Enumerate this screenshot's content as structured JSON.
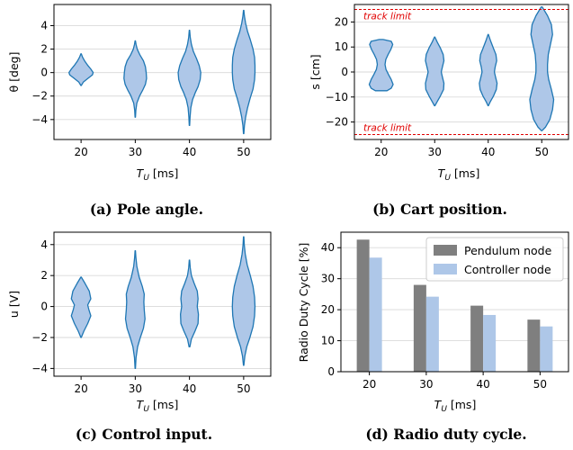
{
  "colors": {
    "violin_fill": "#aec7e8",
    "violin_edge": "#1f77b4",
    "pendulum_bar": "#7f7f7f",
    "controller_bar": "#aec7e8",
    "track_limit": "#e00000",
    "grid": "#d9d9d9"
  },
  "chart_data": [
    {
      "id": "a",
      "type": "violin",
      "caption": "(a) Pole angle.",
      "xlabel_main": "T",
      "xlabel_sub": "U",
      "xlabel_unit": " [ms]",
      "ylabel": "θ [deg]",
      "categories": [
        "20",
        "30",
        "40",
        "50"
      ],
      "ylim": [
        -5.7,
        5.8
      ],
      "yticks": [
        -4,
        -2,
        0,
        2,
        4
      ],
      "ytick_labels": [
        "−4",
        "−2",
        "0",
        "2",
        "4"
      ],
      "grid": true,
      "violins": [
        {
          "min": -1.1,
          "max": 1.6,
          "profile": [
            [
              -1.1,
              0.01
            ],
            [
              -0.8,
              0.12
            ],
            [
              -0.5,
              0.35
            ],
            [
              -0.2,
              0.58
            ],
            [
              0.0,
              0.62
            ],
            [
              0.3,
              0.5
            ],
            [
              0.6,
              0.35
            ],
            [
              1.0,
              0.18
            ],
            [
              1.3,
              0.08
            ],
            [
              1.6,
              0.01
            ]
          ]
        },
        {
          "min": -3.8,
          "max": 2.7,
          "profile": [
            [
              -3.8,
              0.01
            ],
            [
              -3.2,
              0.03
            ],
            [
              -2.6,
              0.08
            ],
            [
              -2.0,
              0.22
            ],
            [
              -1.5,
              0.38
            ],
            [
              -1.0,
              0.52
            ],
            [
              -0.5,
              0.58
            ],
            [
              0.0,
              0.56
            ],
            [
              0.5,
              0.52
            ],
            [
              1.0,
              0.42
            ],
            [
              1.5,
              0.24
            ],
            [
              2.0,
              0.1
            ],
            [
              2.4,
              0.04
            ],
            [
              2.7,
              0.01
            ]
          ]
        },
        {
          "min": -4.5,
          "max": 3.6,
          "profile": [
            [
              -4.5,
              0.01
            ],
            [
              -3.8,
              0.03
            ],
            [
              -3.0,
              0.07
            ],
            [
              -2.3,
              0.16
            ],
            [
              -1.7,
              0.3
            ],
            [
              -1.2,
              0.44
            ],
            [
              -0.6,
              0.55
            ],
            [
              0.0,
              0.58
            ],
            [
              0.6,
              0.5
            ],
            [
              1.2,
              0.36
            ],
            [
              1.8,
              0.2
            ],
            [
              2.4,
              0.1
            ],
            [
              3.0,
              0.04
            ],
            [
              3.6,
              0.01
            ]
          ]
        },
        {
          "min": -5.2,
          "max": 5.3,
          "profile": [
            [
              -5.2,
              0.01
            ],
            [
              -4.5,
              0.04
            ],
            [
              -3.8,
              0.1
            ],
            [
              -3.0,
              0.2
            ],
            [
              -2.2,
              0.33
            ],
            [
              -1.4,
              0.48
            ],
            [
              -0.6,
              0.56
            ],
            [
              0.0,
              0.58
            ],
            [
              0.6,
              0.58
            ],
            [
              1.3,
              0.56
            ],
            [
              2.0,
              0.48
            ],
            [
              2.8,
              0.34
            ],
            [
              3.5,
              0.2
            ],
            [
              4.2,
              0.1
            ],
            [
              4.8,
              0.04
            ],
            [
              5.3,
              0.01
            ]
          ]
        }
      ]
    },
    {
      "id": "b",
      "type": "violin",
      "caption": "(b) Cart position.",
      "xlabel_main": "T",
      "xlabel_sub": "U",
      "xlabel_unit": " [ms]",
      "ylabel": "s [cm]",
      "categories": [
        "20",
        "30",
        "40",
        "50"
      ],
      "ylim": [
        -27,
        27
      ],
      "yticks": [
        -20,
        -10,
        0,
        10,
        20
      ],
      "ytick_labels": [
        "−20",
        "−10",
        "0",
        "10",
        "20"
      ],
      "grid": true,
      "track_limits": [
        {
          "value": 25,
          "label": "track limit"
        },
        {
          "value": -25,
          "label": "track limit"
        }
      ],
      "violins": [
        {
          "min": -7.5,
          "max": 13.0,
          "profile": [
            [
              -7.5,
              0.3
            ],
            [
              -6.5,
              0.52
            ],
            [
              -5.0,
              0.62
            ],
            [
              -3.0,
              0.52
            ],
            [
              -1.0,
              0.38
            ],
            [
              1.0,
              0.25
            ],
            [
              3.0,
              0.2
            ],
            [
              5.0,
              0.24
            ],
            [
              7.0,
              0.36
            ],
            [
              9.0,
              0.5
            ],
            [
              11.0,
              0.6
            ],
            [
              12.3,
              0.52
            ],
            [
              13.0,
              0.1
            ]
          ]
        },
        {
          "min": -13.5,
          "max": 14.0,
          "profile": [
            [
              -13.5,
              0.01
            ],
            [
              -12.0,
              0.12
            ],
            [
              -9.5,
              0.3
            ],
            [
              -7.0,
              0.46
            ],
            [
              -4.5,
              0.48
            ],
            [
              -2.0,
              0.4
            ],
            [
              0.0,
              0.34
            ],
            [
              2.0,
              0.4
            ],
            [
              4.5,
              0.48
            ],
            [
              7.0,
              0.44
            ],
            [
              9.5,
              0.3
            ],
            [
              12.0,
              0.13
            ],
            [
              14.0,
              0.01
            ]
          ]
        },
        {
          "min": -13.5,
          "max": 15.0,
          "profile": [
            [
              -13.5,
              0.01
            ],
            [
              -12.0,
              0.1
            ],
            [
              -9.5,
              0.28
            ],
            [
              -7.0,
              0.42
            ],
            [
              -4.5,
              0.46
            ],
            [
              -2.0,
              0.38
            ],
            [
              0.0,
              0.32
            ],
            [
              2.0,
              0.36
            ],
            [
              4.5,
              0.44
            ],
            [
              7.0,
              0.4
            ],
            [
              9.5,
              0.27
            ],
            [
              12.5,
              0.12
            ],
            [
              15.0,
              0.01
            ]
          ]
        },
        {
          "min": -23.5,
          "max": 26.0,
          "profile": [
            [
              -23.5,
              0.01
            ],
            [
              -22.0,
              0.2
            ],
            [
              -19.0,
              0.42
            ],
            [
              -15.0,
              0.56
            ],
            [
              -11.0,
              0.62
            ],
            [
              -7.0,
              0.5
            ],
            [
              -3.0,
              0.36
            ],
            [
              0.0,
              0.3
            ],
            [
              3.0,
              0.3
            ],
            [
              7.0,
              0.34
            ],
            [
              11.0,
              0.45
            ],
            [
              15.0,
              0.56
            ],
            [
              19.0,
              0.5
            ],
            [
              22.5,
              0.3
            ],
            [
              26.0,
              0.03
            ]
          ]
        }
      ]
    },
    {
      "id": "c",
      "type": "violin",
      "caption": "(c) Control input.",
      "xlabel_main": "T",
      "xlabel_sub": "U",
      "xlabel_unit": " [ms]",
      "ylabel": "u [V]",
      "categories": [
        "20",
        "30",
        "40",
        "50"
      ],
      "ylim": [
        -4.5,
        4.8
      ],
      "yticks": [
        -4,
        -2,
        0,
        2,
        4
      ],
      "ytick_labels": [
        "−4",
        "−2",
        "0",
        "2",
        "4"
      ],
      "grid": true,
      "violins": [
        {
          "min": -2.0,
          "max": 1.9,
          "profile": [
            [
              -2.0,
              0.01
            ],
            [
              -1.6,
              0.14
            ],
            [
              -1.1,
              0.34
            ],
            [
              -0.6,
              0.5
            ],
            [
              -0.2,
              0.4
            ],
            [
              0.1,
              0.34
            ],
            [
              0.5,
              0.5
            ],
            [
              1.0,
              0.42
            ],
            [
              1.5,
              0.2
            ],
            [
              1.9,
              0.01
            ]
          ]
        },
        {
          "min": -4.0,
          "max": 3.6,
          "profile": [
            [
              -4.0,
              0.01
            ],
            [
              -3.3,
              0.04
            ],
            [
              -2.6,
              0.12
            ],
            [
              -2.0,
              0.26
            ],
            [
              -1.4,
              0.42
            ],
            [
              -0.8,
              0.5
            ],
            [
              -0.2,
              0.46
            ],
            [
              0.3,
              0.44
            ],
            [
              0.8,
              0.46
            ],
            [
              1.3,
              0.36
            ],
            [
              1.9,
              0.2
            ],
            [
              2.6,
              0.08
            ],
            [
              3.2,
              0.03
            ],
            [
              3.6,
              0.01
            ]
          ]
        },
        {
          "min": -2.6,
          "max": 3.0,
          "profile": [
            [
              -2.6,
              0.02
            ],
            [
              -2.1,
              0.1
            ],
            [
              -1.6,
              0.28
            ],
            [
              -1.1,
              0.44
            ],
            [
              -0.5,
              0.46
            ],
            [
              0.0,
              0.4
            ],
            [
              0.5,
              0.44
            ],
            [
              1.0,
              0.4
            ],
            [
              1.5,
              0.24
            ],
            [
              2.0,
              0.1
            ],
            [
              2.5,
              0.04
            ],
            [
              3.0,
              0.01
            ]
          ]
        },
        {
          "min": -3.8,
          "max": 4.5,
          "profile": [
            [
              -3.8,
              0.01
            ],
            [
              -3.2,
              0.06
            ],
            [
              -2.6,
              0.16
            ],
            [
              -2.0,
              0.32
            ],
            [
              -1.3,
              0.48
            ],
            [
              -0.6,
              0.56
            ],
            [
              0.0,
              0.58
            ],
            [
              0.6,
              0.56
            ],
            [
              1.3,
              0.48
            ],
            [
              2.0,
              0.34
            ],
            [
              2.7,
              0.18
            ],
            [
              3.4,
              0.08
            ],
            [
              4.0,
              0.03
            ],
            [
              4.5,
              0.01
            ]
          ]
        }
      ]
    },
    {
      "id": "d",
      "type": "bar",
      "caption": "(d) Radio duty cycle.",
      "xlabel_main": "T",
      "xlabel_sub": "U",
      "xlabel_unit": " [ms]",
      "ylabel": "Radio Duty Cycle [%]",
      "categories": [
        "20",
        "30",
        "40",
        "50"
      ],
      "ylim": [
        0,
        45
      ],
      "yticks": [
        0,
        10,
        20,
        30,
        40
      ],
      "ytick_labels": [
        "0",
        "10",
        "20",
        "30",
        "40"
      ],
      "grid": true,
      "legend_position": "top-right",
      "series": [
        {
          "name": "Pendulum node",
          "values": [
            42.6,
            28.0,
            21.3,
            16.8
          ]
        },
        {
          "name": "Controller node",
          "values": [
            36.8,
            24.2,
            18.3,
            14.6
          ]
        }
      ]
    }
  ]
}
